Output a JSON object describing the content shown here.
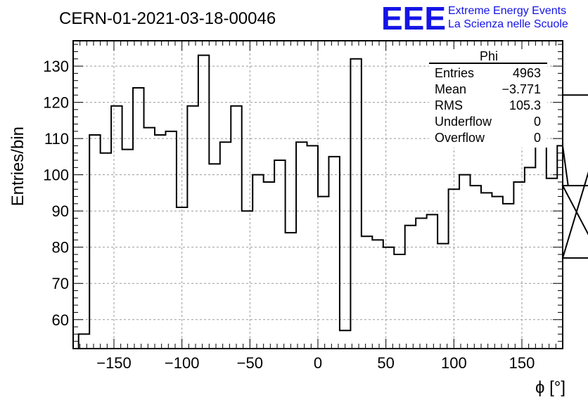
{
  "title": "CERN-01-2021-03-18-00046",
  "logo": {
    "text": "EEE",
    "line1": "Extreme Energy Events",
    "line2": "La Scienza nelle Scuole",
    "color": "#1414e6"
  },
  "stats": {
    "name": "Phi",
    "rows": [
      {
        "label": "Entries",
        "value": "4963"
      },
      {
        "label": "Mean",
        "value": "−3.771"
      },
      {
        "label": "RMS",
        "value": "105.3"
      },
      {
        "label": "Underflow",
        "value": "0"
      },
      {
        "label": "Overflow",
        "value": "0"
      }
    ]
  },
  "chart_data": {
    "type": "bar",
    "style": "step-histogram",
    "title": "CERN-01-2021-03-18-00046",
    "xlabel": "ϕ [°]",
    "ylabel": "Entries/bin",
    "xlim": [
      -180,
      180
    ],
    "ylim": [
      52,
      137
    ],
    "bin_width": 8,
    "bin_edges_start": -176,
    "values": [
      56,
      111,
      106,
      119,
      107,
      124,
      113,
      111,
      112,
      91,
      119,
      133,
      103,
      109,
      119,
      90,
      100,
      98,
      104,
      84,
      109,
      108,
      94,
      105,
      57,
      132,
      83,
      82,
      80,
      78,
      86,
      88,
      89,
      81,
      96,
      100,
      97,
      95,
      94,
      92,
      98,
      102,
      111,
      99,
      108,
      97,
      97,
      97,
      77,
      122
    ],
    "xticks": [
      -150,
      -100,
      -50,
      0,
      50,
      100,
      150
    ],
    "xtick_labels": [
      "−150",
      "−100",
      "−50",
      "0",
      "50",
      "100",
      "150"
    ],
    "yticks": [
      60,
      70,
      80,
      90,
      100,
      110,
      120,
      130
    ],
    "ytick_labels": [
      "60",
      "70",
      "80",
      "90",
      "100",
      "110",
      "120",
      "130"
    ],
    "grid": true,
    "line_color": "#000000",
    "grid_color": "#999999"
  }
}
